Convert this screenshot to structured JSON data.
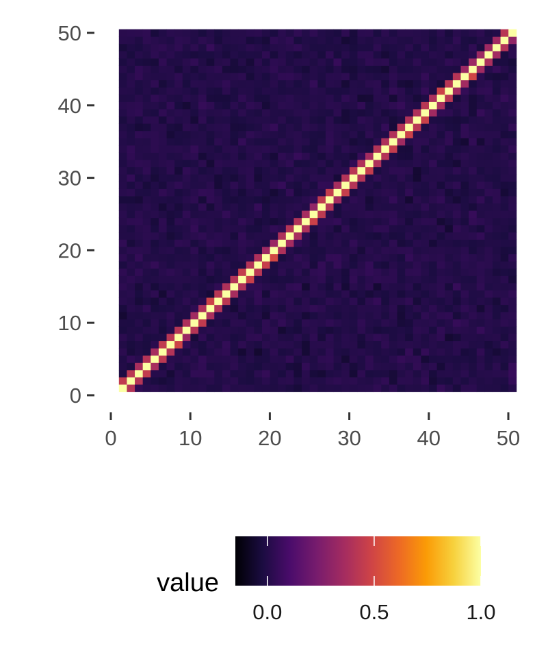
{
  "chart_data": {
    "type": "heatmap",
    "title": "",
    "xlabel": "",
    "ylabel": "",
    "x_range": [
      1,
      50
    ],
    "y_range": [
      1,
      50
    ],
    "xlim": [
      0,
      50
    ],
    "ylim": [
      0,
      50
    ],
    "x_ticks": [
      0,
      10,
      20,
      30,
      40,
      50
    ],
    "y_ticks": [
      0,
      10,
      20,
      30,
      40,
      50
    ],
    "x_tick_labels": [
      "0",
      "10",
      "20",
      "30",
      "40",
      "50"
    ],
    "y_tick_labels": [
      "0",
      "10",
      "20",
      "30",
      "40",
      "50"
    ],
    "grid": false,
    "colormap": "inferno",
    "value_range": [
      -0.15,
      1.0
    ],
    "diagonal_value": 1.0,
    "near_diagonal_value": 0.4,
    "off_diagonal_typical_value": 0.0,
    "legend": {
      "title": "value",
      "position": "bottom",
      "breaks": [
        0.0,
        0.5,
        1.0
      ],
      "break_labels": [
        "0.0",
        "0.5",
        "1.0"
      ]
    },
    "colorbar_stops": [
      "#000004",
      "#1b0c41",
      "#4a0c6b",
      "#781c6d",
      "#a52c60",
      "#cf4446",
      "#ed6925",
      "#fb9b06",
      "#f7d13d",
      "#fcffa4"
    ]
  }
}
